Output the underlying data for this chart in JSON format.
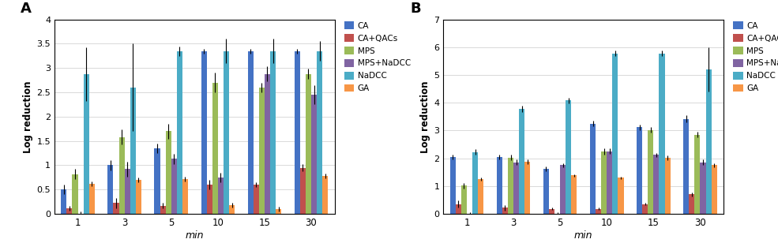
{
  "panel_A": {
    "title": "A",
    "ylabel": "Log reduction",
    "xlabel": "min",
    "ylim": [
      0,
      4
    ],
    "yticks": [
      0,
      0.5,
      1.0,
      1.5,
      2.0,
      2.5,
      3.0,
      3.5,
      4.0
    ],
    "ytick_labels": [
      "0",
      "0.5",
      "1",
      "1.5",
      "2",
      "2.5",
      "3",
      "3.5",
      "4"
    ],
    "time_points": [
      "1",
      "3",
      "5",
      "10",
      "15",
      "30"
    ],
    "series": {
      "CA": {
        "values": [
          0.5,
          1.0,
          1.35,
          3.35,
          3.35,
          3.35
        ],
        "errors": [
          0.1,
          0.1,
          0.1,
          0.05,
          0.05,
          0.05
        ],
        "color": "#4472C4"
      },
      "CA+QACs": {
        "values": [
          0.12,
          0.22,
          0.17,
          0.6,
          0.6,
          0.95
        ],
        "errors": [
          0.05,
          0.1,
          0.05,
          0.1,
          0.05,
          0.08
        ],
        "color": "#C0504D"
      },
      "MPS": {
        "values": [
          0.82,
          1.58,
          1.7,
          2.7,
          2.6,
          2.88
        ],
        "errors": [
          0.1,
          0.15,
          0.15,
          0.2,
          0.1,
          0.1
        ],
        "color": "#9BBB59"
      },
      "MPS+NaDCC": {
        "values": [
          0.0,
          0.92,
          1.13,
          0.75,
          2.88,
          2.45
        ],
        "errors": [
          0.05,
          0.15,
          0.1,
          0.1,
          0.15,
          0.2
        ],
        "color": "#8064A2"
      },
      "NaDCC": {
        "values": [
          2.88,
          2.6,
          3.35,
          3.35,
          3.35,
          3.35
        ],
        "errors": [
          0.55,
          0.9,
          0.1,
          0.25,
          0.25,
          0.2
        ],
        "color": "#4BACC6"
      },
      "GA": {
        "values": [
          0.62,
          0.7,
          0.72,
          0.18,
          0.1,
          0.78
        ],
        "errors": [
          0.05,
          0.05,
          0.05,
          0.05,
          0.05,
          0.05
        ],
        "color": "#F79646"
      }
    }
  },
  "panel_B": {
    "title": "B",
    "ylabel": "Log reduction",
    "xlabel": "min",
    "ylim": [
      0,
      7
    ],
    "yticks": [
      0,
      1,
      2,
      3,
      4,
      5,
      6,
      7
    ],
    "ytick_labels": [
      "0",
      "1",
      "2",
      "3",
      "4",
      "5",
      "6",
      "7"
    ],
    "time_points": [
      "1",
      "3",
      "5",
      "10",
      "15",
      "30"
    ],
    "series": {
      "CA": {
        "values": [
          2.05,
          2.05,
          1.62,
          3.25,
          3.12,
          3.42
        ],
        "errors": [
          0.08,
          0.08,
          0.08,
          0.1,
          0.1,
          0.12
        ],
        "color": "#4472C4"
      },
      "CA+QACs": {
        "values": [
          0.35,
          0.22,
          0.18,
          0.18,
          0.35,
          0.7
        ],
        "errors": [
          0.12,
          0.1,
          0.05,
          0.05,
          0.05,
          0.08
        ],
        "color": "#C0504D"
      },
      "MPS": {
        "values": [
          1.02,
          2.02,
          0.0,
          2.25,
          3.02,
          2.85
        ],
        "errors": [
          0.1,
          0.1,
          0.05,
          0.12,
          0.1,
          0.1
        ],
        "color": "#9BBB59"
      },
      "MPS+NaDCC": {
        "values": [
          0.0,
          1.85,
          1.75,
          2.25,
          2.12,
          1.85
        ],
        "errors": [
          0.05,
          0.1,
          0.08,
          0.1,
          0.08,
          0.1
        ],
        "color": "#8064A2"
      },
      "NaDCC": {
        "values": [
          2.22,
          3.78,
          4.08,
          5.78,
          5.78,
          5.2
        ],
        "errors": [
          0.1,
          0.1,
          0.1,
          0.1,
          0.1,
          0.8
        ],
        "color": "#4BACC6"
      },
      "GA": {
        "values": [
          1.25,
          1.88,
          1.38,
          1.3,
          2.02,
          1.75
        ],
        "errors": [
          0.05,
          0.08,
          0.05,
          0.05,
          0.08,
          0.08
        ],
        "color": "#F79646"
      }
    }
  },
  "legend_labels": [
    "CA",
    "CA+QACs",
    "MPS",
    "MPS+NaDCC",
    "NaDCC",
    "GA"
  ],
  "legend_colors": [
    "#4472C4",
    "#C0504D",
    "#9BBB59",
    "#8064A2",
    "#4BACC6",
    "#F79646"
  ],
  "bar_width": 0.12,
  "figure_bg": "#FFFFFF"
}
